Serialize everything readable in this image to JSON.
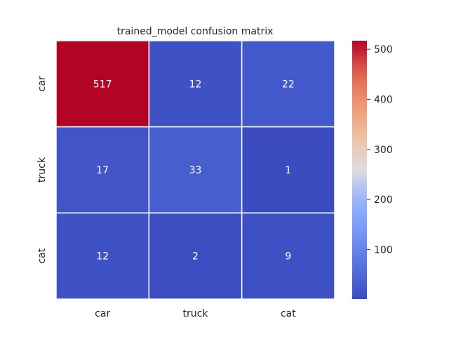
{
  "chart_data": {
    "type": "heatmap",
    "title": "trained_model confusion matrix",
    "xlabel": "",
    "ylabel": "",
    "x_categories": [
      "car",
      "truck",
      "cat"
    ],
    "y_categories": [
      "car",
      "truck",
      "cat"
    ],
    "values": [
      [
        517,
        12,
        22
      ],
      [
        17,
        33,
        1
      ],
      [
        12,
        2,
        9
      ]
    ],
    "colormap": "coolwarm",
    "value_range": [
      1,
      517
    ],
    "colorbar_ticks": [
      100,
      200,
      300,
      400,
      500
    ],
    "colorbar_tick_labels": [
      "100",
      "200",
      "300",
      "400",
      "500"
    ],
    "grid_line_color": "#ffffff",
    "annotation_color": "#ffffff",
    "text_color": "#262626"
  }
}
